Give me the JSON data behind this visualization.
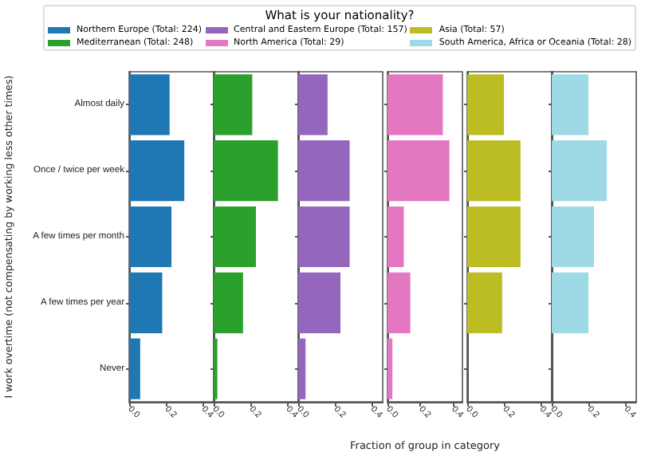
{
  "chart_data": [
    {
      "type": "bar",
      "orientation": "horizontal",
      "legend": "top",
      "legend_title": "What is your nationality?",
      "ylabel": "I work overtime (not compensating by working less other times)",
      "categories": [
        "Almost daily",
        "Once / twice per week",
        "A few times per month",
        "A few times per year",
        "Never"
      ],
      "xlim": [
        0,
        0.46
      ],
      "xticks": [
        {
          "value": 0,
          "label": "0.0"
        },
        {
          "value": 0.2,
          "label": "0.2"
        },
        {
          "value": 0.4,
          "label": "0.4"
        }
      ],
      "grid": false,
      "series": [
        {
          "name": "Northern Europe (Total: 224)",
          "color": "#1f77b4",
          "values": [
            0.22,
            0.3,
            0.23,
            0.18,
            0.06
          ]
        }
      ]
    },
    {
      "type": "bar",
      "orientation": "horizontal",
      "legend": "top",
      "tick_labels": "x",
      "xlim": [
        0,
        0.46
      ],
      "xticks": [
        {
          "value": 0,
          "label": "0.0"
        },
        {
          "value": 0.2,
          "label": "0.2"
        },
        {
          "value": 0.4,
          "label": "0.4"
        }
      ],
      "grid": false,
      "series": [
        {
          "name": "Mediterranean (Total: 248)",
          "color": "#2ca02c",
          "values": [
            0.21,
            0.35,
            0.23,
            0.16,
            0.02
          ]
        }
      ]
    },
    {
      "type": "bar",
      "orientation": "horizontal",
      "legend": "top",
      "tick_labels": "x",
      "xlim": [
        0,
        0.46
      ],
      "xticks": [
        {
          "value": 0,
          "label": "0.0"
        },
        {
          "value": 0.2,
          "label": "0.2"
        },
        {
          "value": 0.4,
          "label": "0.4"
        }
      ],
      "grid": false,
      "series": [
        {
          "name": "Central and Eastern Europe (Total: 157)",
          "color": "#9467bd",
          "values": [
            0.16,
            0.28,
            0.28,
            0.23,
            0.04
          ]
        }
      ]
    },
    {
      "type": "bar",
      "orientation": "horizontal",
      "legend": "top",
      "tick_labels": "x",
      "xlabel": "Fraction of group in category",
      "xlim": [
        0,
        0.46
      ],
      "xticks": [
        {
          "value": 0,
          "label": "0.0"
        },
        {
          "value": 0.2,
          "label": "0.2"
        },
        {
          "value": 0.4,
          "label": "0.4"
        }
      ],
      "grid": false,
      "series": [
        {
          "name": "North America (Total: 29)",
          "color": "#e377c2",
          "values": [
            0.34,
            0.38,
            0.1,
            0.14,
            0.03
          ]
        }
      ]
    },
    {
      "type": "bar",
      "orientation": "horizontal",
      "legend": "top",
      "tick_labels": "x",
      "xlim": [
        0,
        0.46
      ],
      "xticks": [
        {
          "value": 0,
          "label": "0.0"
        },
        {
          "value": 0.2,
          "label": "0.2"
        },
        {
          "value": 0.4,
          "label": "0.4"
        }
      ],
      "grid": false,
      "series": [
        {
          "name": "Asia (Total: 57)",
          "color": "#bcbd22",
          "values": [
            0.2,
            0.29,
            0.29,
            0.19,
            0
          ]
        }
      ]
    },
    {
      "type": "bar",
      "orientation": "horizontal",
      "legend": "top",
      "tick_labels": "x",
      "xlim": [
        0,
        0.46
      ],
      "xticks": [
        {
          "value": 0,
          "label": "0.0"
        },
        {
          "value": 0.2,
          "label": "0.2"
        },
        {
          "value": 0.4,
          "label": "0.4"
        }
      ],
      "grid": false,
      "series": [
        {
          "name": "South America, Africa or Oceania (Total: 28)",
          "color": "#9edae5",
          "values": [
            0.2,
            0.3,
            0.23,
            0.2,
            0
          ]
        }
      ]
    }
  ]
}
